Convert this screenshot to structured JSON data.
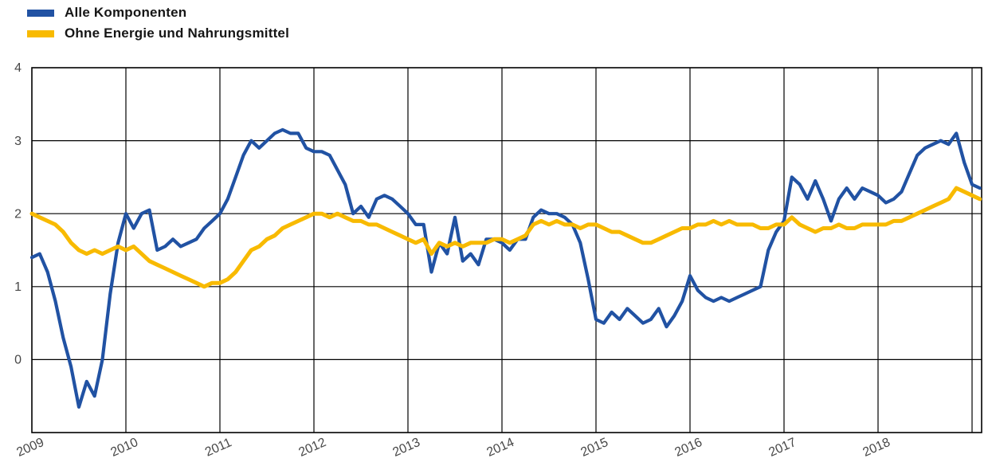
{
  "chart_data": {
    "type": "line",
    "title": "",
    "x_unit": "month",
    "x_start": "2009-01",
    "x_tick_labels": [
      "2009",
      "2010",
      "2011",
      "2012",
      "2013",
      "2014",
      "2015",
      "2016",
      "2017",
      "2018"
    ],
    "y_tick_labels": [
      "4",
      "3",
      "2",
      "1",
      "0"
    ],
    "y_tick_values": [
      4,
      3,
      2,
      1,
      0
    ],
    "ylim": [
      -1,
      4
    ],
    "grid": true,
    "grid_color": "#000000",
    "axis_label_color": "#474747",
    "legend_position": "top-left",
    "series": [
      {
        "name": "Alle Komponenten",
        "color": "#2152a3",
        "values": [
          1.4,
          1.45,
          1.2,
          0.8,
          0.3,
          -0.1,
          -0.65,
          -0.3,
          -0.5,
          0.0,
          0.9,
          1.6,
          2.0,
          1.8,
          2.0,
          2.05,
          1.5,
          1.55,
          1.65,
          1.55,
          1.6,
          1.65,
          1.8,
          1.9,
          2.0,
          2.2,
          2.5,
          2.8,
          3.0,
          2.9,
          3.0,
          3.1,
          3.15,
          3.1,
          3.1,
          2.9,
          2.85,
          2.85,
          2.8,
          2.6,
          2.4,
          2.0,
          2.1,
          1.95,
          2.2,
          2.25,
          2.2,
          2.1,
          2.0,
          1.85,
          1.85,
          1.2,
          1.6,
          1.45,
          1.95,
          1.35,
          1.45,
          1.3,
          1.65,
          1.65,
          1.6,
          1.5,
          1.65,
          1.65,
          1.95,
          2.05,
          2.0,
          2.0,
          1.95,
          1.85,
          1.6,
          1.1,
          0.55,
          0.5,
          0.65,
          0.55,
          0.7,
          0.6,
          0.5,
          0.55,
          0.7,
          0.45,
          0.6,
          0.8,
          1.15,
          0.95,
          0.85,
          0.8,
          0.85,
          0.8,
          0.85,
          0.9,
          0.95,
          1.0,
          1.5,
          1.75,
          1.9,
          2.5,
          2.4,
          2.2,
          2.45,
          2.2,
          1.9,
          2.2,
          2.35,
          2.2,
          2.35,
          2.3,
          2.25,
          2.15,
          2.2,
          2.3,
          2.55,
          2.8,
          2.9,
          2.95,
          3.0,
          2.95,
          3.1,
          2.7,
          2.4,
          2.35
        ]
      },
      {
        "name": "Ohne Energie und Nahrungsmittel",
        "color": "#f8ba00",
        "values": [
          2.0,
          1.95,
          1.9,
          1.85,
          1.75,
          1.6,
          1.5,
          1.45,
          1.5,
          1.45,
          1.5,
          1.55,
          1.5,
          1.55,
          1.45,
          1.35,
          1.3,
          1.25,
          1.2,
          1.15,
          1.1,
          1.05,
          1.0,
          1.05,
          1.05,
          1.1,
          1.2,
          1.35,
          1.5,
          1.55,
          1.65,
          1.7,
          1.8,
          1.85,
          1.9,
          1.95,
          2.0,
          2.0,
          1.95,
          2.0,
          1.95,
          1.9,
          1.9,
          1.85,
          1.85,
          1.8,
          1.75,
          1.7,
          1.65,
          1.6,
          1.65,
          1.45,
          1.6,
          1.55,
          1.6,
          1.55,
          1.6,
          1.6,
          1.6,
          1.65,
          1.65,
          1.6,
          1.65,
          1.7,
          1.85,
          1.9,
          1.85,
          1.9,
          1.85,
          1.85,
          1.8,
          1.85,
          1.85,
          1.8,
          1.75,
          1.75,
          1.7,
          1.65,
          1.6,
          1.6,
          1.65,
          1.7,
          1.75,
          1.8,
          1.8,
          1.85,
          1.85,
          1.9,
          1.85,
          1.9,
          1.85,
          1.85,
          1.85,
          1.8,
          1.8,
          1.85,
          1.85,
          1.95,
          1.85,
          1.8,
          1.75,
          1.8,
          1.8,
          1.85,
          1.8,
          1.8,
          1.85,
          1.85,
          1.85,
          1.85,
          1.9,
          1.9,
          1.95,
          2.0,
          2.05,
          2.1,
          2.15,
          2.2,
          2.35,
          2.3,
          2.25,
          2.2
        ]
      }
    ]
  },
  "legend": {
    "items": [
      {
        "label": "Alle Komponenten",
        "color": "#2152a3"
      },
      {
        "label": "Ohne Energie und Nahrungsmittel",
        "color": "#f8ba00"
      }
    ]
  }
}
